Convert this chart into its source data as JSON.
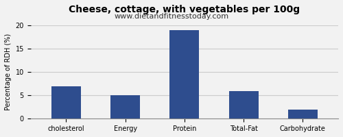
{
  "categories": [
    "cholesterol",
    "Energy",
    "Protein",
    "Total-Fat",
    "Carbohydrate"
  ],
  "values": [
    7.0,
    5.0,
    19.0,
    6.0,
    2.0
  ],
  "bar_color": "#2e4d8e",
  "title": "Cheese, cottage, with vegetables per 100g",
  "subtitle": "www.dietandfitnesstoday.com",
  "ylabel": "Percentage of RDH (%)",
  "ylim": [
    0,
    20
  ],
  "yticks": [
    0,
    5,
    10,
    15,
    20
  ],
  "background_color": "#f2f2f2",
  "title_fontsize": 10,
  "title_fontweight": "bold",
  "subtitle_fontsize": 8,
  "ylabel_fontsize": 7,
  "tick_fontsize": 7,
  "bar_width": 0.5
}
